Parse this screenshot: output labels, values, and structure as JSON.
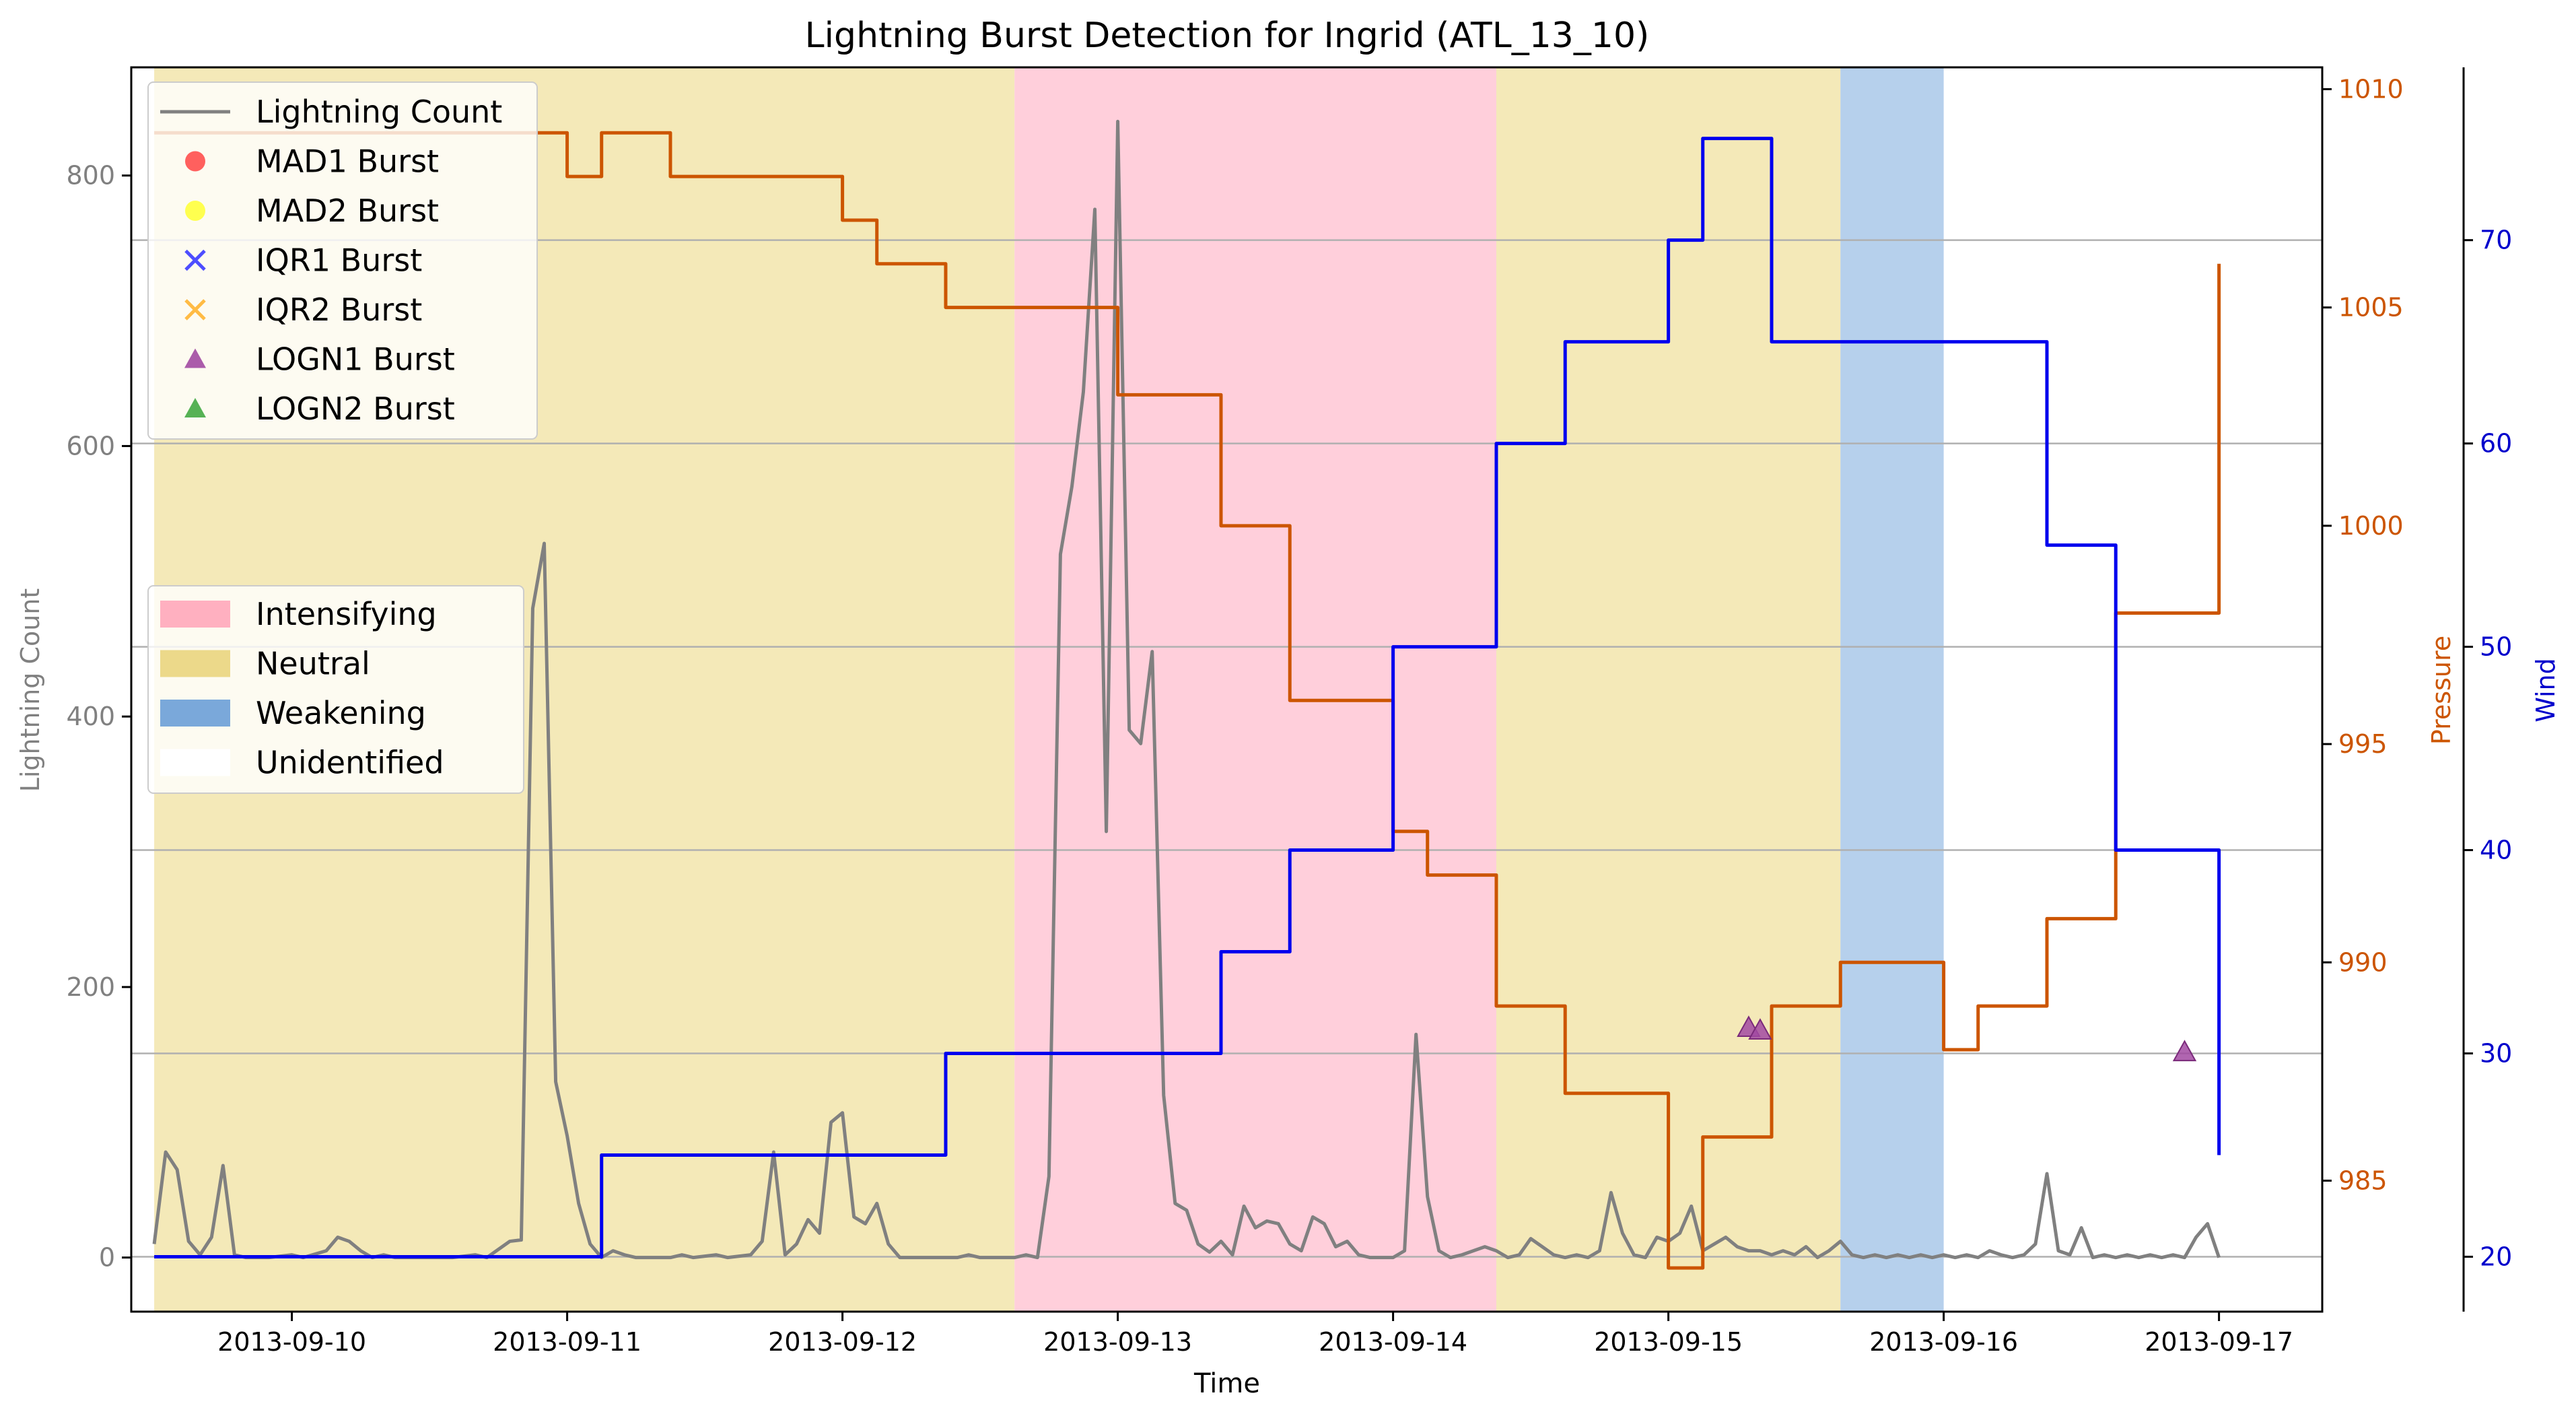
{
  "chart_data": {
    "type": "line",
    "title": "Lightning Burst Detection for Ingrid (ATL_13_10)",
    "xlabel": "Time",
    "x_ticks": [
      "2013-09-10",
      "2013-09-11",
      "2013-09-12",
      "2013-09-13",
      "2013-09-14",
      "2013-09-15",
      "2013-09-16",
      "2013-09-17"
    ],
    "x_range": [
      "2013-09-09 10:00",
      "2013-09-17 09:00"
    ],
    "y_axes": {
      "lightning": {
        "label": "Lightning Count",
        "ylim": [
          -40,
          880
        ],
        "ticks": [
          0,
          200,
          400,
          600,
          800
        ],
        "color": "#808080"
      },
      "pressure": {
        "label": "Pressure",
        "ylim": [
          982.0,
          1010.5
        ],
        "ticks": [
          985,
          990,
          995,
          1000,
          1005,
          1010
        ],
        "color": "#cc5500"
      },
      "wind": {
        "label": "Wind",
        "ylim": [
          17.3,
          78.5
        ],
        "ticks": [
          20,
          30,
          40,
          50,
          60,
          70
        ],
        "color": "#0000cc"
      }
    },
    "grid": "horizontal on wind axis",
    "legend_lines": {
      "placement": "upper-left",
      "entries": [
        {
          "label": "Lightning Count",
          "marker": "line",
          "color": "#808080"
        },
        {
          "label": "MAD1 Burst",
          "marker": "circle",
          "color": "#ff4444"
        },
        {
          "label": "MAD2 Burst",
          "marker": "circle",
          "color": "#ffff33"
        },
        {
          "label": "IQR1 Burst",
          "marker": "x",
          "color": "#4d4dff"
        },
        {
          "label": "IQR2 Burst",
          "marker": "x",
          "color": "#ffbb44"
        },
        {
          "label": "LOGN1 Burst",
          "marker": "triangle",
          "color": "#a24aa2"
        },
        {
          "label": "LOGN2 Burst",
          "marker": "triangle",
          "color": "#44aa44"
        }
      ]
    },
    "legend_phases": {
      "placement": "center-left",
      "entries": [
        {
          "label": "Intensifying",
          "color": "#ffb0c0"
        },
        {
          "label": "Neutral",
          "color": "#ecd98a"
        },
        {
          "label": "Weakening",
          "color": "#7aa8da"
        },
        {
          "label": "Unidentified",
          "color": "#ffffff"
        }
      ]
    },
    "phases": [
      {
        "phase": "Neutral",
        "start": "2013-09-09 12:00",
        "end": "2013-09-12 15:00",
        "color": "#f4e9b8"
      },
      {
        "phase": "Intensifying",
        "start": "2013-09-12 15:00",
        "end": "2013-09-14 09:00",
        "color": "#ffcfdb"
      },
      {
        "phase": "Neutral",
        "start": "2013-09-14 09:00",
        "end": "2013-09-15 15:00",
        "color": "#f4e9b8"
      },
      {
        "phase": "Weakening",
        "start": "2013-09-15 15:00",
        "end": "2013-09-16 00:00",
        "color": "#b6d0ec"
      }
    ],
    "series": [
      {
        "name": "Lightning Count",
        "axis": "lightning",
        "color": "#808080",
        "points": [
          [
            "2013-09-09 12:00",
            10
          ],
          [
            "2013-09-09 13:00",
            78
          ],
          [
            "2013-09-09 14:00",
            65
          ],
          [
            "2013-09-09 15:00",
            12
          ],
          [
            "2013-09-09 16:00",
            2
          ],
          [
            "2013-09-09 17:00",
            15
          ],
          [
            "2013-09-09 18:00",
            68
          ],
          [
            "2013-09-09 19:00",
            2
          ],
          [
            "2013-09-09 20:00",
            0
          ],
          [
            "2013-09-09 22:00",
            0
          ],
          [
            "2013-09-10 00:00",
            2
          ],
          [
            "2013-09-10 01:00",
            0
          ],
          [
            "2013-09-10 03:00",
            5
          ],
          [
            "2013-09-10 04:00",
            15
          ],
          [
            "2013-09-10 05:00",
            12
          ],
          [
            "2013-09-10 06:00",
            5
          ],
          [
            "2013-09-10 07:00",
            0
          ],
          [
            "2013-09-10 08:00",
            2
          ],
          [
            "2013-09-10 09:00",
            0
          ],
          [
            "2013-09-10 14:00",
            0
          ],
          [
            "2013-09-10 16:00",
            2
          ],
          [
            "2013-09-10 17:00",
            0
          ],
          [
            "2013-09-10 19:00",
            12
          ],
          [
            "2013-09-10 20:00",
            13
          ],
          [
            "2013-09-10 21:00",
            480
          ],
          [
            "2013-09-10 22:00",
            528
          ],
          [
            "2013-09-10 23:00",
            130
          ],
          [
            "2013-09-11 00:00",
            90
          ],
          [
            "2013-09-11 01:00",
            40
          ],
          [
            "2013-09-11 02:00",
            10
          ],
          [
            "2013-09-11 03:00",
            0
          ],
          [
            "2013-09-11 04:00",
            5
          ],
          [
            "2013-09-11 05:00",
            2
          ],
          [
            "2013-09-11 06:00",
            0
          ],
          [
            "2013-09-11 09:00",
            0
          ],
          [
            "2013-09-11 10:00",
            2
          ],
          [
            "2013-09-11 11:00",
            0
          ],
          [
            "2013-09-11 13:00",
            2
          ],
          [
            "2013-09-11 14:00",
            0
          ],
          [
            "2013-09-11 16:00",
            2
          ],
          [
            "2013-09-11 17:00",
            12
          ],
          [
            "2013-09-11 18:00",
            78
          ],
          [
            "2013-09-11 19:00",
            2
          ],
          [
            "2013-09-11 20:00",
            10
          ],
          [
            "2013-09-11 21:00",
            28
          ],
          [
            "2013-09-11 22:00",
            18
          ],
          [
            "2013-09-11 23:00",
            100
          ],
          [
            "2013-09-12 00:00",
            107
          ],
          [
            "2013-09-12 01:00",
            30
          ],
          [
            "2013-09-12 02:00",
            25
          ],
          [
            "2013-09-12 03:00",
            40
          ],
          [
            "2013-09-12 04:00",
            10
          ],
          [
            "2013-09-12 05:00",
            0
          ],
          [
            "2013-09-12 10:00",
            0
          ],
          [
            "2013-09-12 11:00",
            2
          ],
          [
            "2013-09-12 12:00",
            0
          ],
          [
            "2013-09-12 15:00",
            0
          ],
          [
            "2013-09-12 16:00",
            2
          ],
          [
            "2013-09-12 17:00",
            0
          ],
          [
            "2013-09-12 18:00",
            60
          ],
          [
            "2013-09-12 19:00",
            520
          ],
          [
            "2013-09-12 20:00",
            570
          ],
          [
            "2013-09-12 21:00",
            640
          ],
          [
            "2013-09-12 22:00",
            775
          ],
          [
            "2013-09-12 23:00",
            315
          ],
          [
            "2013-09-13 00:00",
            840
          ],
          [
            "2013-09-13 01:00",
            390
          ],
          [
            "2013-09-13 02:00",
            380
          ],
          [
            "2013-09-13 03:00",
            448
          ],
          [
            "2013-09-13 04:00",
            120
          ],
          [
            "2013-09-13 05:00",
            40
          ],
          [
            "2013-09-13 06:00",
            35
          ],
          [
            "2013-09-13 07:00",
            10
          ],
          [
            "2013-09-13 08:00",
            4
          ],
          [
            "2013-09-13 09:00",
            12
          ],
          [
            "2013-09-13 10:00",
            2
          ],
          [
            "2013-09-13 11:00",
            38
          ],
          [
            "2013-09-13 12:00",
            22
          ],
          [
            "2013-09-13 13:00",
            27
          ],
          [
            "2013-09-13 14:00",
            25
          ],
          [
            "2013-09-13 15:00",
            10
          ],
          [
            "2013-09-13 16:00",
            5
          ],
          [
            "2013-09-13 17:00",
            30
          ],
          [
            "2013-09-13 18:00",
            25
          ],
          [
            "2013-09-13 19:00",
            8
          ],
          [
            "2013-09-13 20:00",
            12
          ],
          [
            "2013-09-13 21:00",
            2
          ],
          [
            "2013-09-13 22:00",
            0
          ],
          [
            "2013-09-14 00:00",
            0
          ],
          [
            "2013-09-14 01:00",
            5
          ],
          [
            "2013-09-14 02:00",
            165
          ],
          [
            "2013-09-14 03:00",
            45
          ],
          [
            "2013-09-14 04:00",
            5
          ],
          [
            "2013-09-14 05:00",
            0
          ],
          [
            "2013-09-14 06:00",
            2
          ],
          [
            "2013-09-14 07:00",
            5
          ],
          [
            "2013-09-14 08:00",
            8
          ],
          [
            "2013-09-14 09:00",
            5
          ],
          [
            "2013-09-14 10:00",
            0
          ],
          [
            "2013-09-14 11:00",
            2
          ],
          [
            "2013-09-14 12:00",
            14
          ],
          [
            "2013-09-14 13:00",
            8
          ],
          [
            "2013-09-14 14:00",
            2
          ],
          [
            "2013-09-14 15:00",
            0
          ],
          [
            "2013-09-14 16:00",
            2
          ],
          [
            "2013-09-14 17:00",
            0
          ],
          [
            "2013-09-14 18:00",
            5
          ],
          [
            "2013-09-14 19:00",
            48
          ],
          [
            "2013-09-14 20:00",
            18
          ],
          [
            "2013-09-14 21:00",
            2
          ],
          [
            "2013-09-14 22:00",
            0
          ],
          [
            "2013-09-14 23:00",
            15
          ],
          [
            "2013-09-15 00:00",
            12
          ],
          [
            "2013-09-15 01:00",
            18
          ],
          [
            "2013-09-15 02:00",
            38
          ],
          [
            "2013-09-15 03:00",
            5
          ],
          [
            "2013-09-15 04:00",
            10
          ],
          [
            "2013-09-15 05:00",
            15
          ],
          [
            "2013-09-15 06:00",
            8
          ],
          [
            "2013-09-15 07:00",
            5
          ],
          [
            "2013-09-15 08:00",
            5
          ],
          [
            "2013-09-15 09:00",
            2
          ],
          [
            "2013-09-15 10:00",
            5
          ],
          [
            "2013-09-15 11:00",
            2
          ],
          [
            "2013-09-15 12:00",
            8
          ],
          [
            "2013-09-15 13:00",
            0
          ],
          [
            "2013-09-15 14:00",
            5
          ],
          [
            "2013-09-15 15:00",
            12
          ],
          [
            "2013-09-15 16:00",
            2
          ],
          [
            "2013-09-15 17:00",
            0
          ],
          [
            "2013-09-15 18:00",
            2
          ],
          [
            "2013-09-15 19:00",
            0
          ],
          [
            "2013-09-15 20:00",
            2
          ],
          [
            "2013-09-15 21:00",
            0
          ],
          [
            "2013-09-15 22:00",
            2
          ],
          [
            "2013-09-15 23:00",
            0
          ],
          [
            "2013-09-16 00:00",
            2
          ],
          [
            "2013-09-16 01:00",
            0
          ],
          [
            "2013-09-16 02:00",
            2
          ],
          [
            "2013-09-16 03:00",
            0
          ],
          [
            "2013-09-16 04:00",
            5
          ],
          [
            "2013-09-16 05:00",
            2
          ],
          [
            "2013-09-16 06:00",
            0
          ],
          [
            "2013-09-16 07:00",
            2
          ],
          [
            "2013-09-16 08:00",
            10
          ],
          [
            "2013-09-16 09:00",
            62
          ],
          [
            "2013-09-16 10:00",
            5
          ],
          [
            "2013-09-16 11:00",
            2
          ],
          [
            "2013-09-16 12:00",
            22
          ],
          [
            "2013-09-16 13:00",
            0
          ],
          [
            "2013-09-16 14:00",
            2
          ],
          [
            "2013-09-16 15:00",
            0
          ],
          [
            "2013-09-16 16:00",
            2
          ],
          [
            "2013-09-16 17:00",
            0
          ],
          [
            "2013-09-16 18:00",
            2
          ],
          [
            "2013-09-16 19:00",
            0
          ],
          [
            "2013-09-16 20:00",
            2
          ],
          [
            "2013-09-16 21:00",
            0
          ],
          [
            "2013-09-16 22:00",
            15
          ],
          [
            "2013-09-16 23:00",
            25
          ],
          [
            "2013-09-17 00:00",
            0
          ]
        ]
      },
      {
        "name": "Pressure",
        "axis": "pressure",
        "color": "#cc5500",
        "step": true,
        "points": [
          [
            "2013-09-09 12:00",
            1009
          ],
          [
            "2013-09-11 00:00",
            1008
          ],
          [
            "2013-09-11 03:00",
            1009
          ],
          [
            "2013-09-11 09:00",
            1008
          ],
          [
            "2013-09-12 00:00",
            1007
          ],
          [
            "2013-09-12 03:00",
            1006
          ],
          [
            "2013-09-12 09:00",
            1005
          ],
          [
            "2013-09-13 00:00",
            1003
          ],
          [
            "2013-09-13 09:00",
            1000
          ],
          [
            "2013-09-13 15:00",
            996
          ],
          [
            "2013-09-14 00:00",
            993
          ],
          [
            "2013-09-14 03:00",
            992
          ],
          [
            "2013-09-14 09:00",
            989
          ],
          [
            "2013-09-14 15:00",
            987
          ],
          [
            "2013-09-15 00:00",
            983
          ],
          [
            "2013-09-15 03:00",
            986
          ],
          [
            "2013-09-15 09:00",
            989
          ],
          [
            "2013-09-15 15:00",
            990
          ],
          [
            "2013-09-16 00:00",
            988
          ],
          [
            "2013-09-16 03:00",
            989
          ],
          [
            "2013-09-16 09:00",
            991
          ],
          [
            "2013-09-16 15:00",
            998
          ],
          [
            "2013-09-17 00:00",
            1006
          ]
        ]
      },
      {
        "name": "Wind",
        "axis": "wind",
        "color": "#0000ee",
        "step": true,
        "points": [
          [
            "2013-09-09 12:00",
            20
          ],
          [
            "2013-09-11 03:00",
            25
          ],
          [
            "2013-09-12 09:00",
            30
          ],
          [
            "2013-09-13 09:00",
            35
          ],
          [
            "2013-09-13 15:00",
            40
          ],
          [
            "2013-09-14 00:00",
            50
          ],
          [
            "2013-09-14 09:00",
            60
          ],
          [
            "2013-09-14 15:00",
            65
          ],
          [
            "2013-09-15 00:00",
            70
          ],
          [
            "2013-09-15 03:00",
            75
          ],
          [
            "2013-09-15 09:00",
            65
          ],
          [
            "2013-09-16 09:00",
            55
          ],
          [
            "2013-09-16 15:00",
            40
          ],
          [
            "2013-09-17 00:00",
            25
          ]
        ]
      }
    ],
    "bursts": [
      {
        "type": "LOGN1 Burst",
        "points": [
          [
            "2013-09-15 07:00",
            170
          ],
          [
            "2013-09-15 08:00",
            168
          ],
          [
            "2013-09-16 21:00",
            152
          ]
        ]
      }
    ]
  }
}
